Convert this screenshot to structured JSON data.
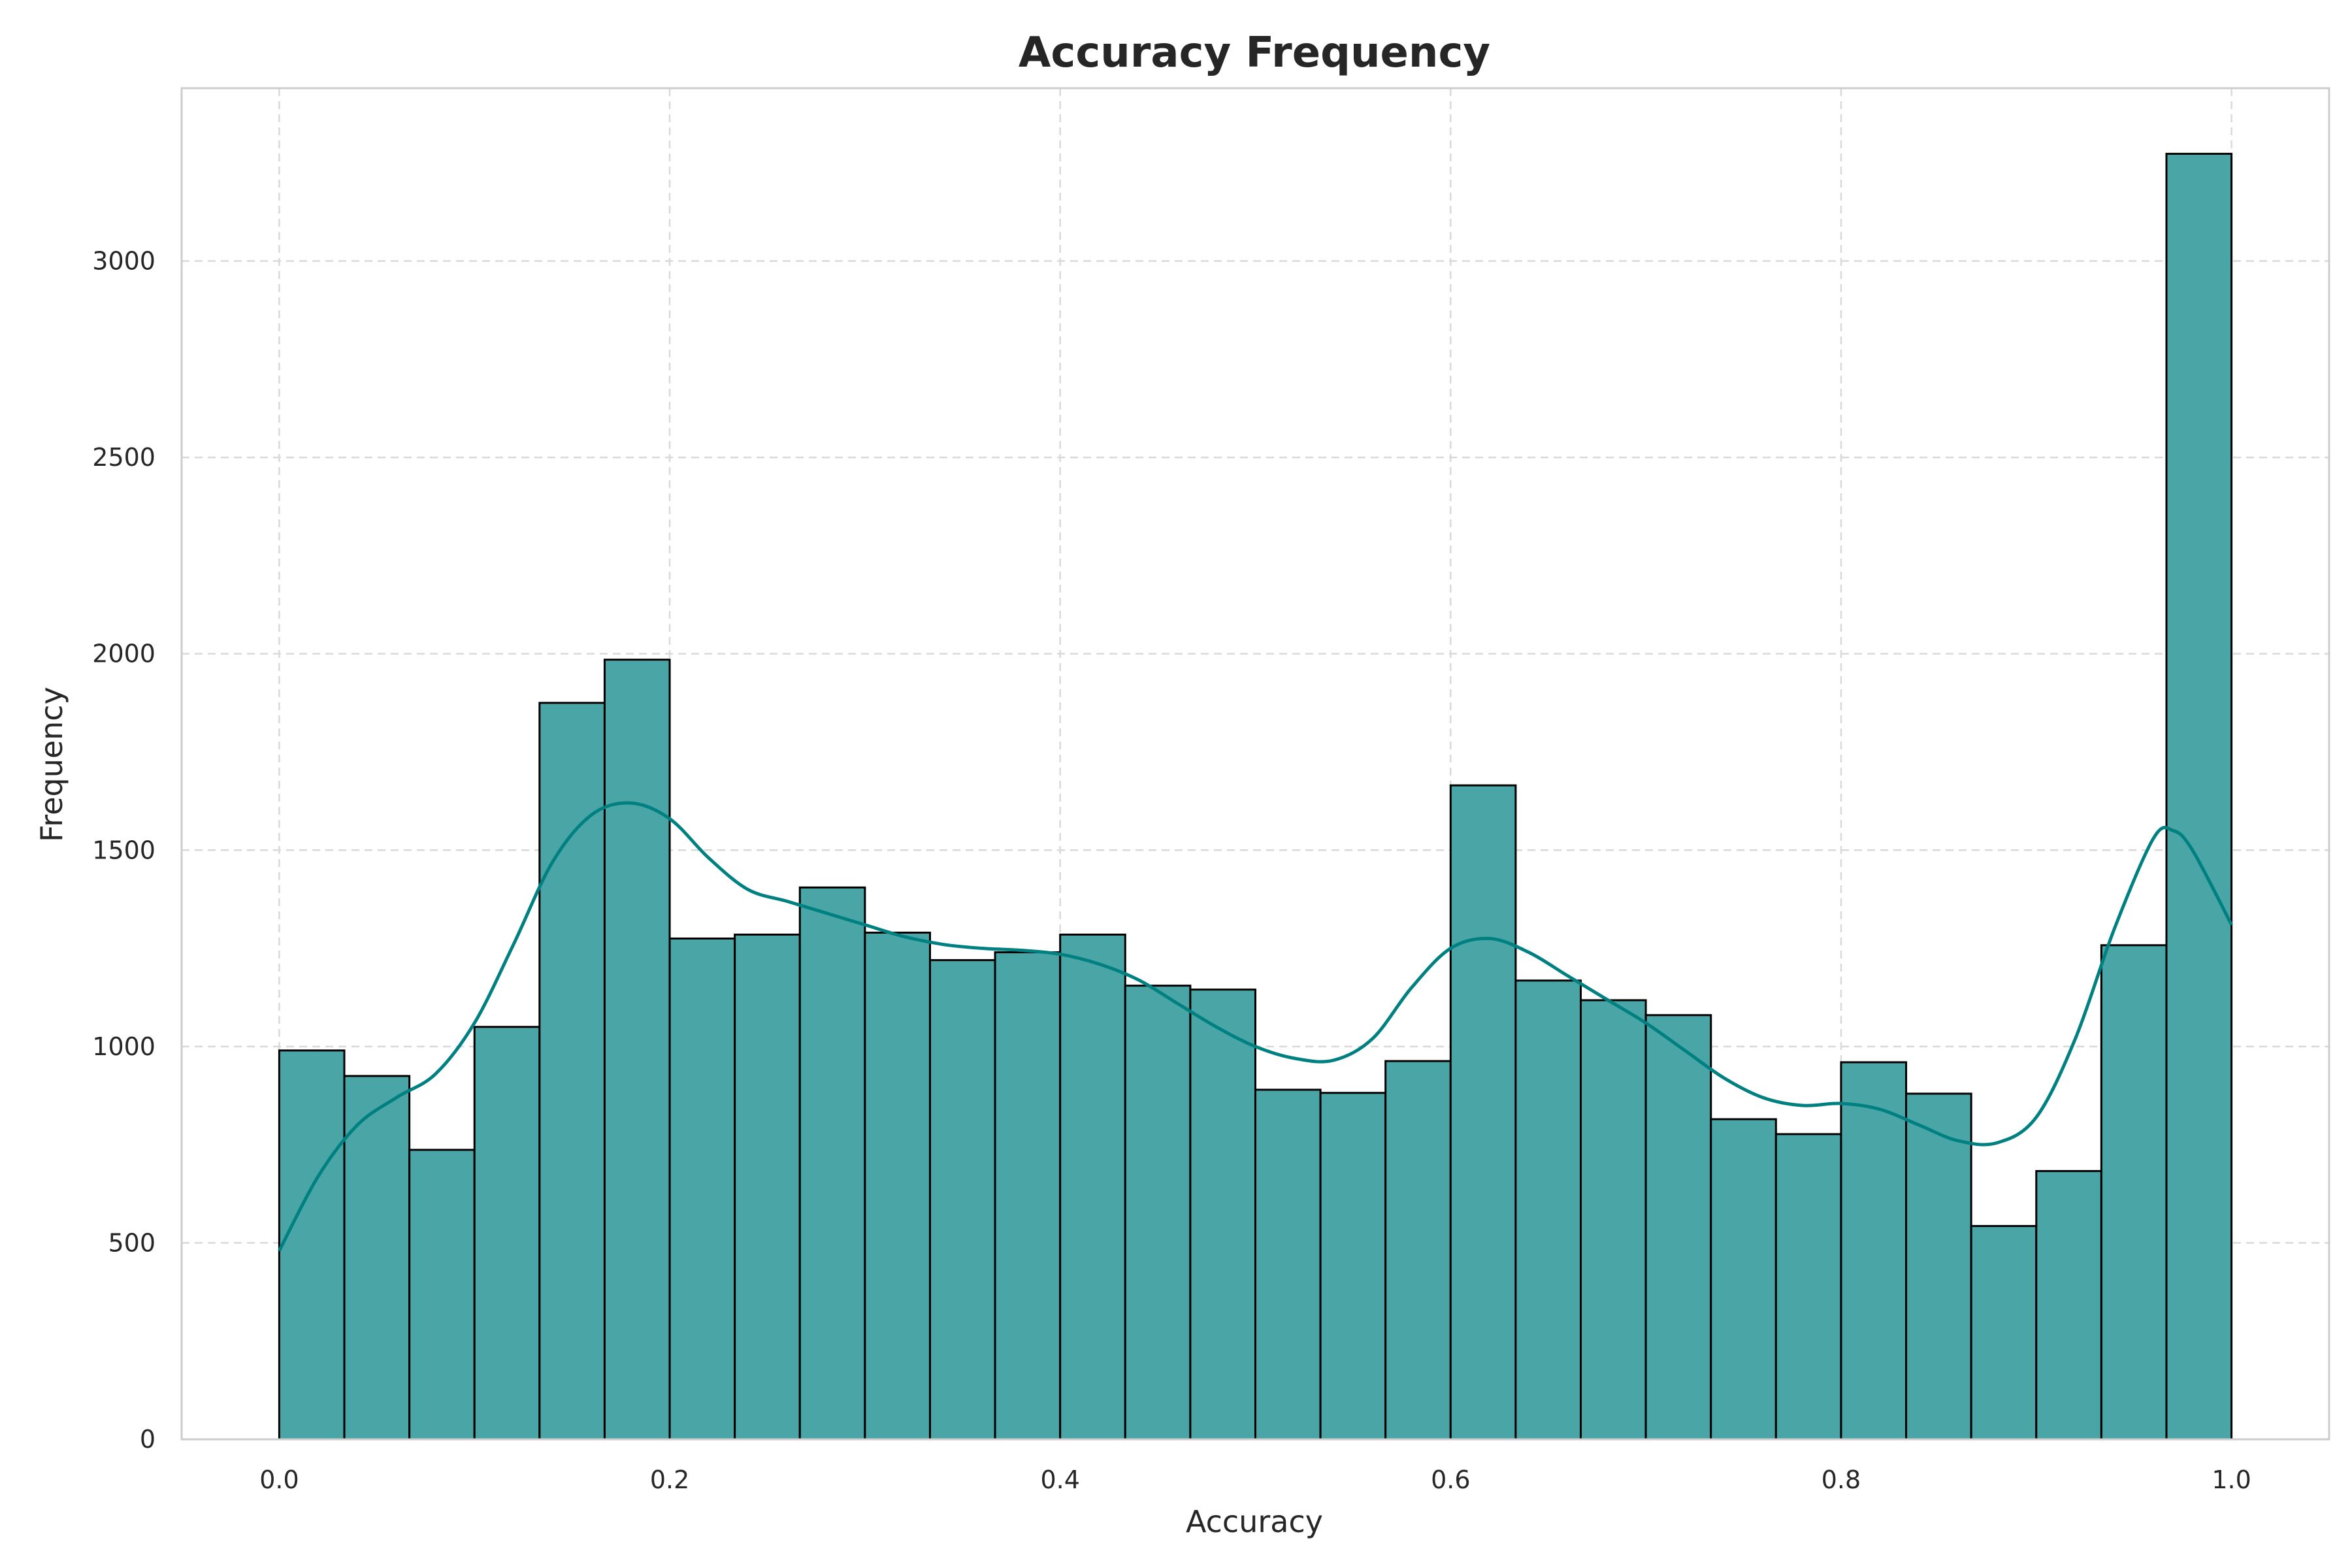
{
  "chart_data": {
    "type": "bar",
    "title": "Accuracy Frequency",
    "xlabel": "Accuracy",
    "ylabel": "Frequency",
    "xlim": [
      -0.05,
      1.05
    ],
    "ylim": [
      0,
      3440
    ],
    "xticks": [
      0.0,
      0.2,
      0.4,
      0.6,
      0.8,
      1.0
    ],
    "xtick_labels": [
      "0.0",
      "0.2",
      "0.4",
      "0.6",
      "0.8",
      "1.0"
    ],
    "yticks": [
      0,
      500,
      1000,
      1500,
      2000,
      2500,
      3000
    ],
    "ytick_labels": [
      "0",
      "500",
      "1000",
      "1500",
      "2000",
      "2500",
      "3000"
    ],
    "grid": true,
    "bin_range": [
      0.0,
      1.0
    ],
    "bin_count": 30,
    "values": [
      990,
      925,
      737,
      1050,
      1875,
      1985,
      1275,
      1285,
      1405,
      1290,
      1220,
      1240,
      1285,
      1155,
      1145,
      890,
      882,
      963,
      1665,
      1168,
      1118,
      1080,
      815,
      777,
      960,
      880,
      543,
      683,
      1258,
      3273
    ],
    "kde_x": [
      0.0,
      0.02,
      0.04,
      0.06,
      0.08,
      0.1,
      0.12,
      0.14,
      0.16,
      0.18,
      0.2,
      0.22,
      0.24,
      0.26,
      0.28,
      0.3,
      0.32,
      0.34,
      0.36,
      0.38,
      0.4,
      0.42,
      0.44,
      0.46,
      0.48,
      0.5,
      0.52,
      0.54,
      0.56,
      0.58,
      0.6,
      0.62,
      0.64,
      0.66,
      0.68,
      0.7,
      0.72,
      0.74,
      0.76,
      0.78,
      0.8,
      0.82,
      0.84,
      0.86,
      0.88,
      0.9,
      0.92,
      0.94,
      0.96,
      0.97,
      0.98,
      1.0
    ],
    "kde_y": [
      480,
      670,
      800,
      870,
      930,
      1060,
      1260,
      1470,
      1590,
      1620,
      1580,
      1480,
      1400,
      1370,
      1340,
      1310,
      1280,
      1260,
      1250,
      1245,
      1235,
      1210,
      1170,
      1110,
      1050,
      1000,
      970,
      965,
      1020,
      1150,
      1250,
      1275,
      1240,
      1180,
      1120,
      1060,
      990,
      920,
      870,
      850,
      855,
      840,
      800,
      760,
      755,
      820,
      1020,
      1300,
      1530,
      1550,
      1500,
      1310
    ],
    "colors": {
      "bar_fill": "#4aa6a6",
      "bar_edge": "#000000",
      "kde_line": "#008080"
    }
  }
}
